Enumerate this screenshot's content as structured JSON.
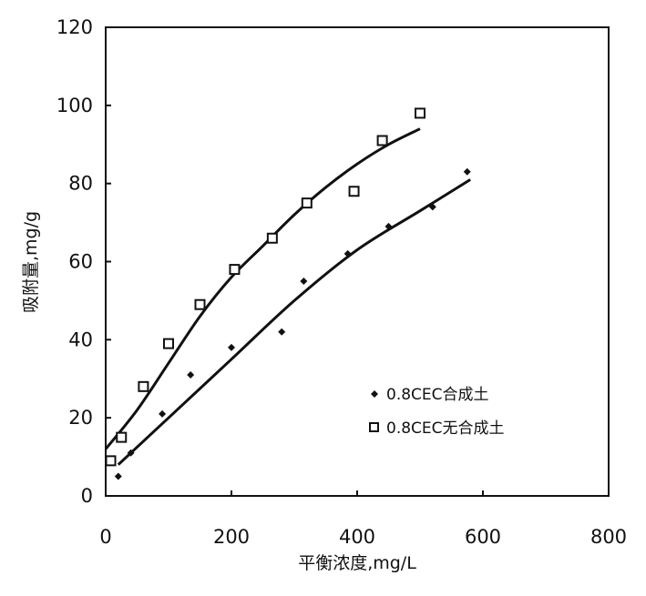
{
  "chart_data": {
    "type": "scatter",
    "xlabel": "平衡浓度,mg/L",
    "ylabel": "吸附量,mg/g",
    "xlim": [
      0,
      800
    ],
    "ylim": [
      0,
      120
    ],
    "x_ticks": [
      "0",
      "200",
      "400",
      "600",
      "800"
    ],
    "y_ticks": [
      "0",
      "20",
      "40",
      "60",
      "80",
      "100",
      "120"
    ],
    "grid": false,
    "legend_position": "center-right",
    "series": [
      {
        "name": "0.8CEC合成土",
        "marker": "diamond",
        "color": "#111111",
        "points": [
          {
            "x": 20,
            "y": 5
          },
          {
            "x": 40,
            "y": 11
          },
          {
            "x": 90,
            "y": 21
          },
          {
            "x": 135,
            "y": 31
          },
          {
            "x": 200,
            "y": 38
          },
          {
            "x": 280,
            "y": 42
          },
          {
            "x": 315,
            "y": 55
          },
          {
            "x": 385,
            "y": 62
          },
          {
            "x": 450,
            "y": 69
          },
          {
            "x": 520,
            "y": 74
          },
          {
            "x": 575,
            "y": 83
          }
        ],
        "fit": [
          {
            "x": 20,
            "y": 8
          },
          {
            "x": 100,
            "y": 20
          },
          {
            "x": 200,
            "y": 35
          },
          {
            "x": 300,
            "y": 50
          },
          {
            "x": 400,
            "y": 63
          },
          {
            "x": 500,
            "y": 73
          },
          {
            "x": 580,
            "y": 81
          }
        ]
      },
      {
        "name": "0.8CEC无合成土",
        "marker": "square",
        "color": "#111111",
        "points": [
          {
            "x": 8,
            "y": 9
          },
          {
            "x": 25,
            "y": 15
          },
          {
            "x": 60,
            "y": 28
          },
          {
            "x": 100,
            "y": 39
          },
          {
            "x": 150,
            "y": 49
          },
          {
            "x": 205,
            "y": 58
          },
          {
            "x": 265,
            "y": 66
          },
          {
            "x": 320,
            "y": 75
          },
          {
            "x": 395,
            "y": 78
          },
          {
            "x": 440,
            "y": 91
          },
          {
            "x": 500,
            "y": 98
          }
        ],
        "fit": [
          {
            "x": 0,
            "y": 12
          },
          {
            "x": 50,
            "y": 22
          },
          {
            "x": 100,
            "y": 34
          },
          {
            "x": 150,
            "y": 46
          },
          {
            "x": 200,
            "y": 56
          },
          {
            "x": 250,
            "y": 64
          },
          {
            "x": 300,
            "y": 72
          },
          {
            "x": 350,
            "y": 79
          },
          {
            "x": 400,
            "y": 85
          },
          {
            "x": 450,
            "y": 90
          },
          {
            "x": 500,
            "y": 94
          }
        ]
      }
    ]
  }
}
